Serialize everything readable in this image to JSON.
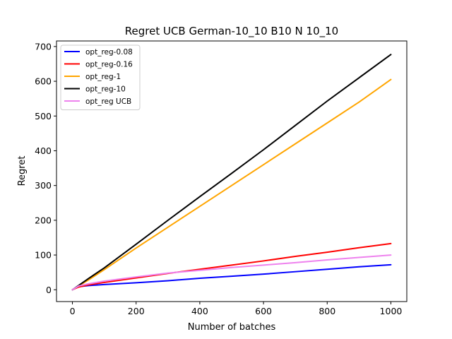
{
  "chart_data": {
    "type": "line",
    "title": "Regret UCB German-10_10 B10 N 10_10",
    "xlabel": "Number of batches",
    "ylabel": "Regret",
    "xlim": [
      -50,
      1050
    ],
    "ylim": [
      -34,
      716
    ],
    "xticks": [
      0,
      200,
      400,
      600,
      800,
      1000
    ],
    "yticks": [
      0,
      100,
      200,
      300,
      400,
      500,
      600,
      700
    ],
    "xtick_labels": [
      "0",
      "200",
      "400",
      "600",
      "800",
      "1000"
    ],
    "ytick_labels": [
      "0",
      "100",
      "200",
      "300",
      "400",
      "500",
      "600",
      "700"
    ],
    "grid": false,
    "legend_position": "top-left",
    "series": [
      {
        "name": "opt_reg-0.08",
        "color": "#0000ff",
        "x": [
          0,
          20,
          50,
          100,
          200,
          300,
          400,
          500,
          600,
          700,
          800,
          900,
          1000
        ],
        "y": [
          0,
          9,
          12,
          15,
          20,
          26,
          33,
          39,
          45,
          52,
          59,
          66,
          72
        ]
      },
      {
        "name": "opt_reg-0.16",
        "color": "#ff0000",
        "x": [
          0,
          20,
          50,
          100,
          200,
          300,
          400,
          500,
          600,
          700,
          800,
          900,
          1000
        ],
        "y": [
          0,
          8,
          14,
          21,
          34,
          47,
          59,
          71,
          83,
          96,
          108,
          121,
          133
        ]
      },
      {
        "name": "opt_reg-1",
        "color": "#ffa500",
        "x": [
          0,
          50,
          100,
          200,
          300,
          400,
          500,
          600,
          700,
          800,
          900,
          1000
        ],
        "y": [
          0,
          28,
          58,
          120,
          180,
          240,
          300,
          360,
          420,
          480,
          540,
          605
        ]
      },
      {
        "name": "opt_reg-10",
        "color": "#000000",
        "x": [
          0,
          50,
          100,
          200,
          300,
          400,
          500,
          600,
          700,
          800,
          900,
          1000
        ],
        "y": [
          0,
          32,
          63,
          131,
          200,
          268,
          335,
          403,
          473,
          543,
          610,
          677
        ]
      },
      {
        "name": "opt_reg UCB",
        "color": "#ee82ee",
        "x": [
          0,
          20,
          50,
          100,
          200,
          300,
          400,
          500,
          600,
          700,
          800,
          900,
          1000
        ],
        "y": [
          0,
          11,
          17,
          25,
          37,
          48,
          56,
          64,
          71,
          78,
          86,
          93,
          100
        ]
      }
    ]
  }
}
